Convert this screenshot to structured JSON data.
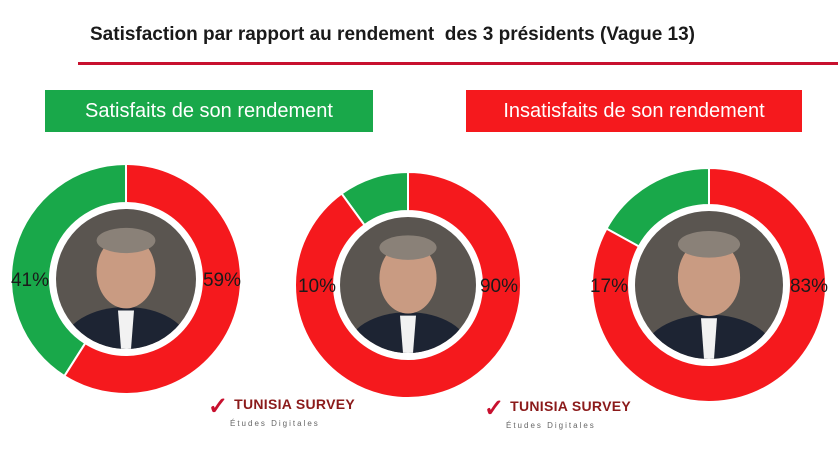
{
  "title": "Satisfaction par rapport au rendement  des 3 présidents (Vague 13)",
  "legend": {
    "satisfied": "Satisfaits de son rendement",
    "unsatisfied": "Insatisfaits de son rendement"
  },
  "colors": {
    "satisfied": "#19a84a",
    "unsatisfied": "#f5191d",
    "title_rule": "#c8102e",
    "legend_text": "#ffffff"
  },
  "brand": {
    "name": "TUNISIA SURVEY",
    "subtitle": "Études Digitales",
    "icon": "checkmark-icon"
  },
  "chart_data": [
    {
      "type": "pie",
      "labels": [
        "Satisfaits de son rendement",
        "Insatisfaits de son rendement"
      ],
      "values": [
        41,
        59
      ],
      "value_labels": [
        "41%",
        "59%"
      ],
      "center_image": "portrait-photo"
    },
    {
      "type": "pie",
      "labels": [
        "Satisfaits de son rendement",
        "Insatisfaits de son rendement"
      ],
      "values": [
        10,
        90
      ],
      "value_labels": [
        "10%",
        "90%"
      ],
      "center_image": "portrait-photo"
    },
    {
      "type": "pie",
      "labels": [
        "Satisfaits de son rendement",
        "Insatisfaits de son rendement"
      ],
      "values": [
        17,
        83
      ],
      "value_labels": [
        "17%",
        "83%"
      ],
      "center_image": "portrait-photo"
    }
  ]
}
